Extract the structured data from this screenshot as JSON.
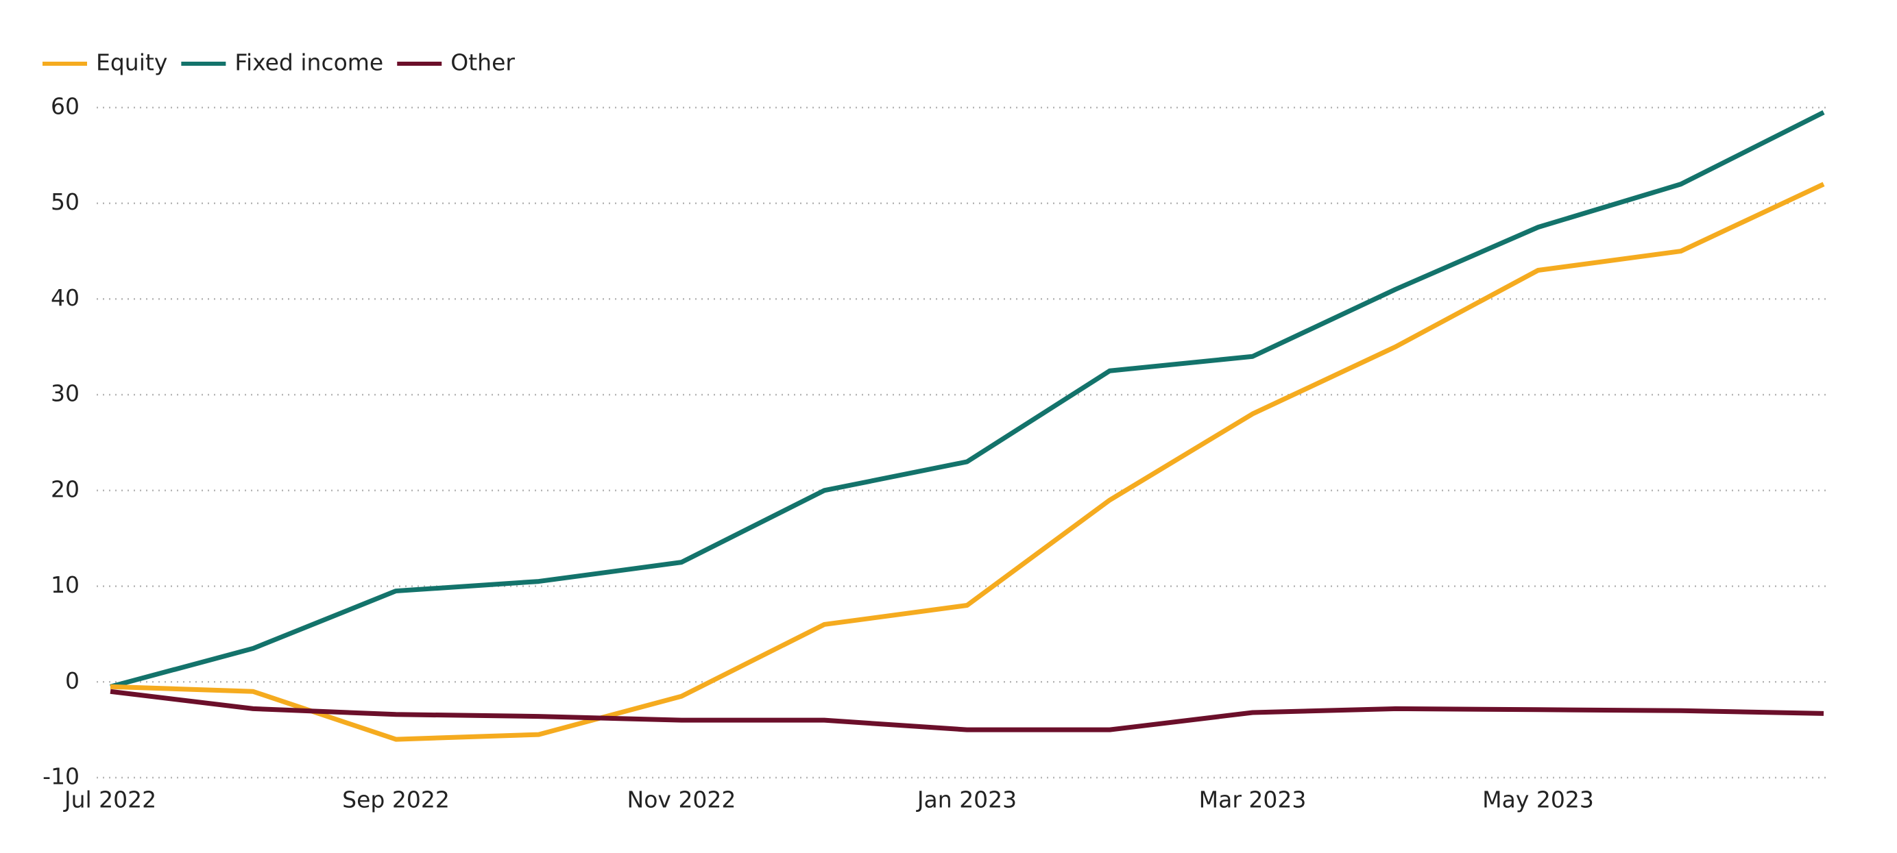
{
  "chart_data": {
    "type": "line",
    "x": [
      "2022-07",
      "2022-08",
      "2022-09",
      "2022-10",
      "2022-11",
      "2022-12",
      "2023-01",
      "2023-02",
      "2023-03",
      "2023-04",
      "2023-05",
      "2023-06",
      "2023-07"
    ],
    "series": [
      {
        "name": "Equity",
        "color": "#f5ab1f",
        "values": [
          -0.5,
          -1,
          -6,
          -5.5,
          -1.5,
          6,
          8,
          19,
          28,
          35,
          43,
          45,
          52
        ]
      },
      {
        "name": "Fixed income",
        "color": "#13736b",
        "values": [
          -0.5,
          3.5,
          9.5,
          10.5,
          12.5,
          20,
          23,
          32.5,
          34,
          41,
          47.5,
          52,
          59.5
        ]
      },
      {
        "name": "Other",
        "color": "#6b0f2a",
        "values": [
          -1,
          -2.8,
          -3.4,
          -3.6,
          -4,
          -4,
          -5,
          -5,
          -3.2,
          -2.8,
          -2.9,
          -3,
          -3.3
        ]
      }
    ],
    "ylim": [
      -10,
      60
    ],
    "yticks": [
      -10,
      0,
      10,
      20,
      30,
      40,
      50,
      60
    ],
    "xticks": [
      {
        "value": "2022-07",
        "label": "Jul 2022"
      },
      {
        "value": "2022-09",
        "label": "Sep 2022"
      },
      {
        "value": "2022-11",
        "label": "Nov 2022"
      },
      {
        "value": "2023-01",
        "label": "Jan 2023"
      },
      {
        "value": "2023-03",
        "label": "Mar 2023"
      },
      {
        "value": "2023-05",
        "label": "May 2023"
      }
    ],
    "grid": true,
    "legend": "top-left"
  }
}
